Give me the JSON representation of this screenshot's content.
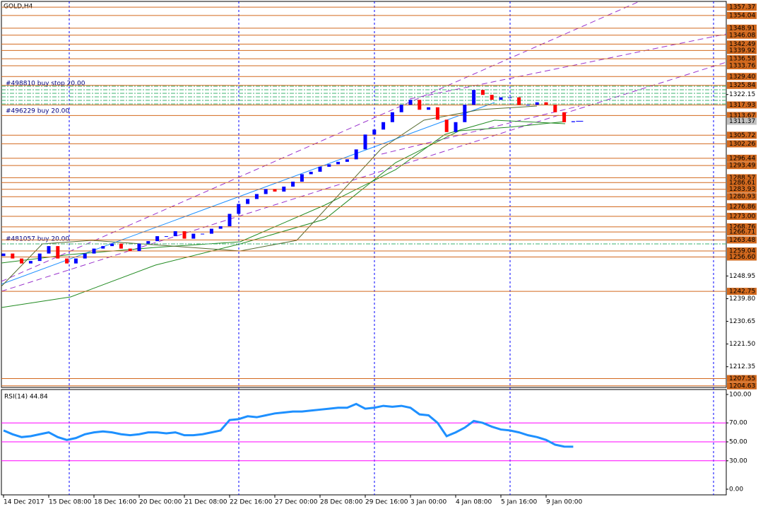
{
  "chart_data": [
    {
      "type": "candlestick",
      "title": "GOLD,H4",
      "categories": [
        "14 Dec 2017",
        null,
        null,
        null,
        null,
        "15 Dec 08:00",
        null,
        null,
        null,
        null,
        "18 Dec 16:00",
        null,
        null,
        null,
        null,
        "20 Dec 00:00",
        null,
        null,
        null,
        null,
        "21 Dec 08:00",
        null,
        null,
        null,
        null,
        "22 Dec 16:00",
        null,
        null,
        null,
        null,
        "27 Dec 00:00",
        null,
        null,
        null,
        null,
        "28 Dec 08:00",
        null,
        null,
        null,
        null,
        "29 Dec 16:00",
        null,
        null,
        null,
        null,
        "3 Jan 00:00",
        null,
        null,
        null,
        null,
        "4 Jan 08:00",
        null,
        null,
        null,
        null,
        "5 Jan 16:00",
        null,
        null,
        null,
        null,
        "9 Jan 00:00",
        null,
        null,
        null
      ],
      "series": [
        {
          "name": "open",
          "values": [
            1257,
            1258,
            1256,
            1254,
            1255,
            1258,
            1261,
            1256,
            1254,
            1256,
            1258,
            1260,
            1261,
            1262,
            1260,
            1259,
            1262,
            1263,
            1265,
            1265,
            1267,
            1264,
            1266,
            1266,
            1268,
            1269,
            1274,
            1278,
            1280,
            1282,
            1284,
            1283,
            1285,
            1287,
            1290,
            1291,
            1293,
            1294,
            1295,
            1296,
            1300,
            1306,
            1308,
            1311,
            1315,
            1318,
            1320,
            1316,
            1317,
            1312,
            1307,
            1311,
            1318,
            1324,
            1322,
            1320,
            1321,
            1321,
            1318,
            1318,
            1319,
            1318,
            1315,
            1311
          ]
        },
        {
          "name": "close",
          "values": [
            1258,
            1256,
            1254,
            1255,
            1258,
            1261,
            1256,
            1254,
            1256,
            1258,
            1260,
            1261,
            1262,
            1260,
            1259,
            1262,
            1263,
            1265,
            1265,
            1267,
            1264,
            1266,
            1266,
            1268,
            1269,
            1274,
            1278,
            1280,
            1282,
            1284,
            1283,
            1285,
            1287,
            1290,
            1291,
            1293,
            1294,
            1295,
            1296,
            1300,
            1306,
            1308,
            1311,
            1315,
            1318,
            1320,
            1316,
            1317,
            1312,
            1307,
            1311,
            1318,
            1324,
            1322,
            1320,
            1321,
            1321,
            1318,
            1318,
            1319,
            1318,
            1315,
            1311,
            1311.37
          ]
        }
      ],
      "up_color": "#0000ff",
      "down_color": "#ff0000",
      "ylim": [
        1204.0,
        1359.7
      ],
      "yticks": [
        1322.15,
        1248.95,
        {
          "value": 1239.8,
          "label": "1239.80"
        },
        1230.65,
        {
          "value": 1221.5,
          "label": "1221.50"
        },
        1212.35
      ],
      "levels": [
        1357.37,
        1354.04,
        1348.91,
        1346.08,
        1342.49,
        1339.92,
        1336.58,
        1333.76,
        {
          "value": 1329.4,
          "label": "1329.40"
        },
        1325.84,
        1317.93,
        1313.67,
        1305.72,
        1302.26,
        1296.44,
        1293.49,
        1288.57,
        1286.61,
        1283.93,
        1280.93,
        1276.86,
        {
          "value": 1273,
          "label": "1273.00"
        },
        1268.76,
        1266.71,
        1263.48,
        1259.04,
        {
          "value": 1256.6,
          "label": "1256.60"
        },
        1242.75,
        1207.55,
        1204.63
      ],
      "level_color": "#d2691e",
      "current_price": 1311.37,
      "orders": [
        "#498810 buy stop 20.00",
        "#496229 buy 20.00",
        "#481057 buy 20.00"
      ]
    },
    {
      "type": "line",
      "title": "RSI(14) 44.84",
      "values": [
        62,
        58,
        55,
        56,
        58,
        60,
        55,
        52,
        54,
        58,
        60,
        61,
        60,
        58,
        57,
        58,
        60,
        60,
        59,
        60,
        57,
        57,
        58,
        60,
        62,
        73,
        74,
        77,
        76,
        78,
        80,
        81,
        82,
        82,
        83,
        84,
        85,
        86,
        86,
        90,
        85,
        86,
        88,
        87,
        88,
        86,
        79,
        78,
        70,
        56,
        60,
        65,
        72,
        70,
        66,
        63,
        62,
        60,
        57,
        55,
        52,
        47,
        45,
        44.84
      ],
      "color": "#1e90ff",
      "ylim": [
        0,
        100
      ],
      "yticks": [
        {
          "value": 100,
          "label": "100.00"
        },
        {
          "value": 70,
          "label": "70.00"
        },
        {
          "value": 50,
          "label": "50.00"
        },
        {
          "value": 30,
          "label": "30.00"
        },
        {
          "value": 0,
          "label": "0.00"
        }
      ],
      "levels": [
        70,
        50,
        30
      ],
      "level_color": "#ff00ff"
    }
  ]
}
